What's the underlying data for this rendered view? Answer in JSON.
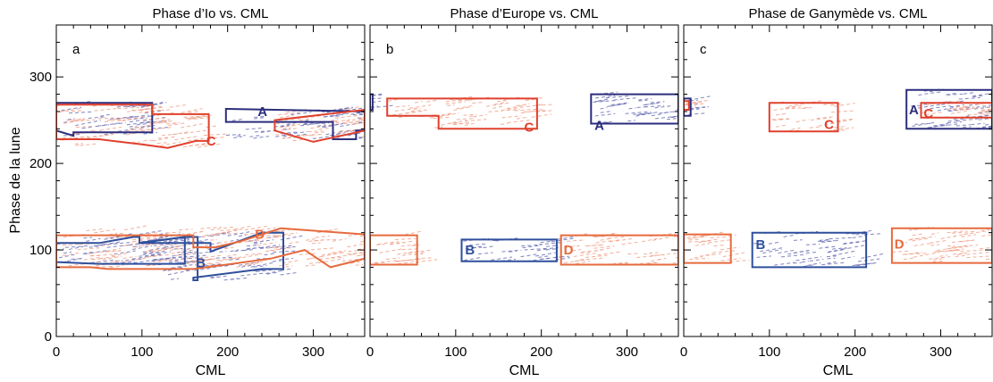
{
  "ylabel": "Phase de la lune",
  "chart_data": [
    {
      "type": "scatter",
      "title": "Phase d’Io vs. CML",
      "panel_letter": "a",
      "xlabel": "CML",
      "ylabel": "Phase de la lune",
      "xlim": [
        0,
        360
      ],
      "ylim": [
        0,
        360
      ],
      "x_ticks": [
        0,
        100,
        200,
        300
      ],
      "y_ticks": [
        0,
        100,
        200,
        300
      ],
      "grid": false,
      "regions": [
        {
          "name": "A",
          "color": "#2b2d7c",
          "polygon": [
            [
              0,
              238
            ],
            [
              0,
              270
            ],
            [
              112,
              270
            ],
            [
              112,
              236
            ],
            [
              20,
              236
            ],
            [
              20,
              232
            ]
          ],
          "label_at": [
            235,
            260
          ]
        },
        {
          "name": "A",
          "color": "#2b2d7c",
          "polygon": [
            [
              198,
              263
            ],
            [
              360,
              260
            ],
            [
              360,
              238
            ],
            [
              350,
              238
            ],
            [
              350,
              228
            ],
            [
              323,
              228
            ],
            [
              323,
              248
            ],
            [
              198,
              248
            ]
          ],
          "label_at": null
        },
        {
          "name": "C",
          "color": "#e0402d",
          "polygon": [
            [
              0,
              228
            ],
            [
              0,
              268
            ],
            [
              112,
              268
            ],
            [
              112,
              257
            ],
            [
              155,
              257
            ],
            [
              155,
              257
            ],
            [
              178,
              257
            ],
            [
              178,
              226
            ],
            [
              163,
              226
            ],
            [
              130,
              218
            ],
            [
              100,
              222
            ],
            [
              50,
              228
            ],
            [
              10,
              228
            ]
          ],
          "label_at": [
            175,
            226
          ]
        },
        {
          "name": "C",
          "color": "#e0402d",
          "polygon": [
            [
              255,
              250
            ],
            [
              360,
              262
            ],
            [
              360,
              238
            ],
            [
              300,
              225
            ],
            [
              255,
              238
            ]
          ],
          "label_at": null
        },
        {
          "name": "B",
          "color": "#2e4f9c",
          "polygon": [
            [
              0,
              90
            ],
            [
              0,
              108
            ],
            [
              50,
              108
            ],
            [
              90,
              115
            ],
            [
              97,
              115
            ],
            [
              97,
              108
            ],
            [
              150,
              115
            ],
            [
              150,
              84
            ],
            [
              50,
              84
            ],
            [
              0,
              86
            ]
          ],
          "label_at": [
            163,
            85
          ]
        },
        {
          "name": "B",
          "color": "#2e4f9c",
          "polygon": [
            [
              96,
              108
            ],
            [
              150,
              115
            ],
            [
              165,
              115
            ],
            [
              165,
              65
            ],
            [
              160,
              65
            ],
            [
              160,
              68
            ],
            [
              240,
              78
            ],
            [
              265,
              78
            ],
            [
              265,
              120
            ],
            [
              240,
              120
            ],
            [
              180,
              98
            ],
            [
              180,
              108
            ]
          ],
          "label_at": null
        },
        {
          "name": "D",
          "color": "#e66a3d",
          "polygon": [
            [
              0,
              80
            ],
            [
              0,
              117
            ],
            [
              160,
              117
            ],
            [
              160,
              103
            ],
            [
              185,
              103
            ],
            [
              215,
              110
            ],
            [
              262,
              125
            ],
            [
              360,
              118
            ],
            [
              360,
              90
            ],
            [
              320,
              80
            ],
            [
              290,
              100
            ],
            [
              250,
              90
            ],
            [
              160,
              78
            ],
            [
              60,
              78
            ],
            [
              40,
              80
            ]
          ],
          "label_at": [
            232,
            118
          ]
        }
      ]
    },
    {
      "type": "scatter",
      "title": "Phase d’Europe vs. CML",
      "panel_letter": "b",
      "xlabel": "CML",
      "xlim": [
        0,
        360
      ],
      "ylim": [
        0,
        360
      ],
      "x_ticks": [
        0,
        100,
        200,
        300
      ],
      "y_ticks": [
        0,
        100,
        200,
        300
      ],
      "grid": false,
      "regions": [
        {
          "name": "A",
          "color": "#2b2d7c",
          "polygon": [
            [
              0,
              262
            ],
            [
              0,
              280
            ],
            [
              3,
              280
            ],
            [
              3,
              262
            ]
          ],
          "label_at": null
        },
        {
          "name": "A",
          "color": "#2b2d7c",
          "polygon": [
            [
              258,
              246
            ],
            [
              258,
              280
            ],
            [
              360,
              280
            ],
            [
              360,
              246
            ]
          ],
          "label_at": [
            262,
            244
          ]
        },
        {
          "name": "C",
          "color": "#e0402d",
          "polygon": [
            [
              20,
              255
            ],
            [
              20,
              275
            ],
            [
              195,
              275
            ],
            [
              195,
              240
            ],
            [
              80,
              240
            ],
            [
              80,
              255
            ]
          ],
          "label_at": [
            180,
            242
          ]
        },
        {
          "name": "B",
          "color": "#2e4f9c",
          "polygon": [
            [
              107,
              87
            ],
            [
              107,
              112
            ],
            [
              218,
              112
            ],
            [
              218,
              87
            ]
          ],
          "label_at": [
            111,
            100
          ]
        },
        {
          "name": "D",
          "color": "#e66a3d",
          "polygon": [
            [
              0,
              83
            ],
            [
              0,
              117
            ],
            [
              55,
              117
            ],
            [
              55,
              83
            ]
          ],
          "label_at": null
        },
        {
          "name": "D",
          "color": "#e66a3d",
          "polygon": [
            [
              223,
              83
            ],
            [
              223,
              117
            ],
            [
              360,
              117
            ],
            [
              360,
              83
            ]
          ],
          "label_at": [
            226,
            100
          ]
        }
      ]
    },
    {
      "type": "scatter",
      "title": "Phase de Ganymède vs. CML",
      "panel_letter": "c",
      "xlabel": "CML",
      "xlim": [
        0,
        360
      ],
      "ylim": [
        0,
        360
      ],
      "x_ticks": [
        0,
        100,
        200,
        300
      ],
      "y_ticks": [
        0,
        100,
        200,
        300
      ],
      "grid": false,
      "regions": [
        {
          "name": "A",
          "color": "#2b2d7c",
          "polygon": [
            [
              0,
              255
            ],
            [
              0,
              275
            ],
            [
              8,
              275
            ],
            [
              8,
              255
            ]
          ],
          "label_at": null
        },
        {
          "name": "A",
          "color": "#2b2d7c",
          "polygon": [
            [
              260,
              240
            ],
            [
              260,
              285
            ],
            [
              360,
              285
            ],
            [
              360,
              240
            ]
          ],
          "label_at": [
            263,
            262
          ]
        },
        {
          "name": "C",
          "color": "#e0402d",
          "polygon": [
            [
              0,
              262
            ],
            [
              0,
              272
            ],
            [
              6,
              272
            ],
            [
              6,
              262
            ]
          ],
          "label_at": null
        },
        {
          "name": "C",
          "color": "#e0402d",
          "polygon": [
            [
              100,
              237
            ],
            [
              100,
              270
            ],
            [
              180,
              270
            ],
            [
              180,
              237
            ]
          ],
          "label_at": [
            164,
            245
          ]
        },
        {
          "name": "C",
          "color": "#e0402d",
          "polygon": [
            [
              277,
              253
            ],
            [
              277,
              270
            ],
            [
              360,
              270
            ],
            [
              360,
              253
            ]
          ],
          "label_at": [
            280,
            258
          ]
        },
        {
          "name": "B",
          "color": "#2e4f9c",
          "polygon": [
            [
              80,
              80
            ],
            [
              80,
              120
            ],
            [
              213,
              120
            ],
            [
              213,
              80
            ]
          ],
          "label_at": [
            84,
            106
          ]
        },
        {
          "name": "D",
          "color": "#e66a3d",
          "polygon": [
            [
              0,
              85
            ],
            [
              0,
              118
            ],
            [
              55,
              118
            ],
            [
              55,
              85
            ]
          ],
          "label_at": null
        },
        {
          "name": "D",
          "color": "#e66a3d",
          "polygon": [
            [
              243,
              85
            ],
            [
              243,
              125
            ],
            [
              360,
              125
            ],
            [
              360,
              85
            ]
          ],
          "label_at": [
            246,
            107
          ]
        }
      ]
    }
  ]
}
